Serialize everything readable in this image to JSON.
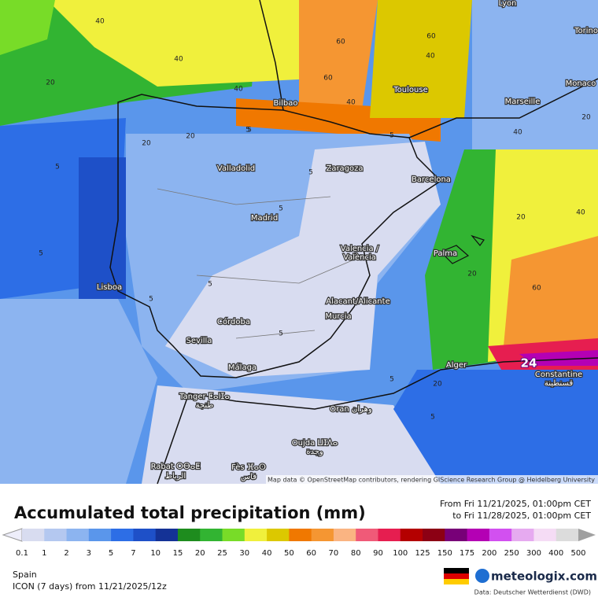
{
  "map": {
    "cities": [
      "Lyon",
      "Torino",
      "Monaco",
      "Toulouse",
      "Marseille",
      "Bilbao",
      "Valladolid",
      "Zaragoza",
      "Barcelona",
      "Madrid",
      "Valencia /",
      "València",
      "Palma",
      "Lisboa",
      "Alacant/Alicante",
      "Murcia",
      "Córdoba",
      "Sevilla",
      "Málaga",
      "Alger",
      "Constantine",
      "قسنطينة",
      "Tanger ⵟⴰⵏⵊⴰ",
      "طنجة",
      "Oran وهران",
      "Oujda ⵡⵊⴷⴰ",
      "وجدة",
      "Rabat ⵔⴱⴰⵟ",
      "الرباط",
      "Fès ⴼⴰⵙ",
      "فاس"
    ],
    "contour_labels": [
      "40",
      "40",
      "40",
      "60",
      "60",
      "60",
      "40",
      "20",
      "20",
      "40",
      "5",
      "5",
      "5",
      "5",
      "20",
      "5",
      "5",
      "5",
      "20",
      "60",
      "5",
      "20",
      "20",
      "20",
      "40",
      "40",
      "5",
      "5",
      "5",
      "5"
    ],
    "max_marker": "24",
    "attribution": "Map data © OpenStreetMap contributors, rendering GIScience Research Group @ Heidelberg University"
  },
  "legend": {
    "title": "Accumulated total precipitation (mm)",
    "period_from": "From Fri 11/21/2025, 01:00pm CET",
    "period_to": "to Fri 11/28/2025, 01:00pm CET",
    "labels": [
      "0.1",
      "1",
      "2",
      "3",
      "5",
      "7",
      "10",
      "15",
      "20",
      "25",
      "30",
      "40",
      "50",
      "60",
      "70",
      "80",
      "90",
      "100",
      "125",
      "150",
      "175",
      "200",
      "250",
      "300",
      "400",
      "500"
    ],
    "colors": [
      "#d8dcf0",
      "#b4c8f0",
      "#8cb4f0",
      "#5a96eb",
      "#2d6ee6",
      "#1e50c8",
      "#143296",
      "#1e8c1e",
      "#32b432",
      "#78dc28",
      "#f0f03c",
      "#dcc800",
      "#f07800",
      "#f59632",
      "#fab482",
      "#f05a78",
      "#e61e50",
      "#b40000",
      "#8c0014",
      "#780078",
      "#b400b4",
      "#d250f0",
      "#e6aaf0",
      "#f5dcf5",
      "#dcdcdc"
    ]
  },
  "footer": {
    "region": "Spain",
    "model": "ICON (7 days) from 11/21/2025/12z",
    "brand": "meteologix.com",
    "source": "Data: Deutscher Wetterdienst (DWD)"
  }
}
